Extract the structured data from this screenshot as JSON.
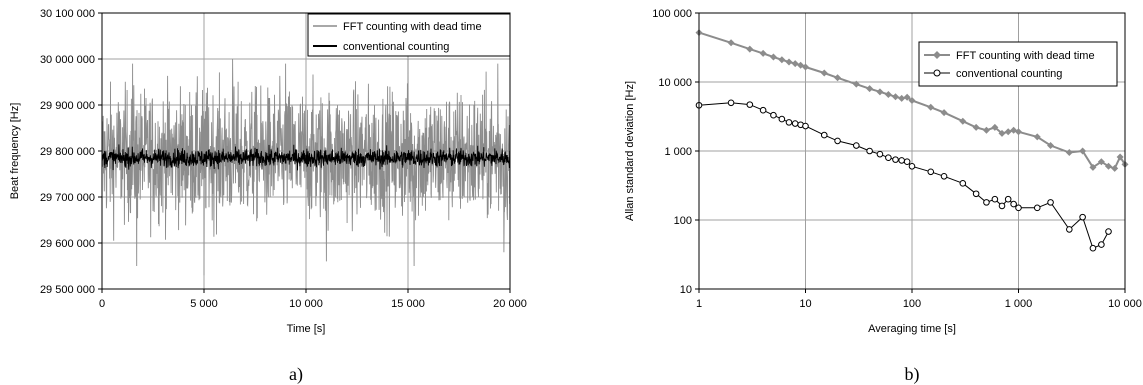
{
  "chart_data": [
    {
      "type": "line",
      "panel_label": "a)",
      "xlabel": "Time [s]",
      "ylabel": "Beat frequency [Hz]",
      "xlim": [
        0,
        20000
      ],
      "ylim": [
        29500000,
        30100000
      ],
      "x_ticks": [
        "0",
        "5 000",
        "10 000",
        "15 000",
        "20 000"
      ],
      "y_ticks": [
        "29 500 000",
        "29 600 000",
        "29 700 000",
        "29 800 000",
        "29 900 000",
        "30 000 000",
        "30 100 000"
      ],
      "grid": true,
      "legend_position": "top-right",
      "series": [
        {
          "name": "FFT counting with dead time",
          "color": "#8c8c8c",
          "mean": 29790000,
          "typical_range": [
            29650000,
            29930000
          ],
          "extremes": [
            29530000,
            30000000
          ],
          "extreme_points": [
            {
              "x": 1500,
              "y": 29990000
            },
            {
              "x": 1700,
              "y": 29550000
            },
            {
              "x": 5000,
              "y": 29530000
            },
            {
              "x": 6400,
              "y": 30000000
            },
            {
              "x": 9000,
              "y": 29990000
            },
            {
              "x": 11000,
              "y": 29560000
            },
            {
              "x": 15000,
              "y": 30000000
            },
            {
              "x": 15300,
              "y": 29550000
            },
            {
              "x": 19400,
              "y": 29990000
            },
            {
              "x": 19700,
              "y": 29580000
            }
          ]
        },
        {
          "name": "conventional counting",
          "color": "#000000",
          "mean": 29785000,
          "typical_range": [
            29765000,
            29805000
          ],
          "extremes": [
            29755000,
            29815000
          ]
        }
      ]
    },
    {
      "type": "line",
      "panel_label": "b)",
      "xlabel": "Averaging time [s]",
      "ylabel": "Allan standard deviation [Hz]",
      "x_scale": "log",
      "y_scale": "log",
      "xlim": [
        1,
        10000
      ],
      "ylim": [
        10,
        100000
      ],
      "x_ticks": [
        "1",
        "10",
        "100",
        "1 000",
        "10 000"
      ],
      "y_ticks": [
        "10",
        "100",
        "1 000",
        "10 000",
        "100 000"
      ],
      "grid": true,
      "legend_position": "top-right",
      "series": [
        {
          "name": "FFT counting with dead time",
          "color": "#8c8c8c",
          "marker": "diamond",
          "x": [
            1,
            2,
            3,
            4,
            5,
            6,
            7,
            8,
            9,
            10,
            15,
            20,
            30,
            40,
            50,
            60,
            70,
            80,
            90,
            100,
            150,
            200,
            300,
            400,
            500,
            600,
            700,
            800,
            900,
            1000,
            1500,
            2000,
            3000,
            4000,
            5000,
            6000,
            7000,
            8000,
            9000,
            10000
          ],
          "y": [
            52000,
            37000,
            30000,
            26000,
            23000,
            21000,
            19500,
            18500,
            17500,
            16500,
            13500,
            11500,
            9300,
            8000,
            7200,
            6600,
            6100,
            5800,
            6000,
            5400,
            4300,
            3600,
            2700,
            2200,
            2000,
            2200,
            1800,
            1900,
            2000,
            1900,
            1600,
            1200,
            950,
            1000,
            580,
            700,
            600,
            560,
            820,
            640
          ]
        },
        {
          "name": "conventional counting",
          "color": "#000000",
          "marker": "circle",
          "x": [
            1,
            2,
            3,
            4,
            5,
            6,
            7,
            8,
            9,
            10,
            15,
            20,
            30,
            40,
            50,
            60,
            70,
            80,
            90,
            100,
            150,
            200,
            300,
            400,
            500,
            600,
            700,
            800,
            900,
            1000,
            1500,
            2000,
            3000,
            4000,
            5000,
            6000,
            7000
          ],
          "y": [
            4600,
            5000,
            4700,
            3900,
            3300,
            2900,
            2600,
            2500,
            2400,
            2300,
            1700,
            1400,
            1200,
            1000,
            900,
            800,
            750,
            730,
            700,
            600,
            500,
            430,
            340,
            240,
            180,
            200,
            160,
            200,
            170,
            150,
            150,
            180,
            73,
            110,
            39,
            44,
            68
          ]
        }
      ]
    }
  ]
}
